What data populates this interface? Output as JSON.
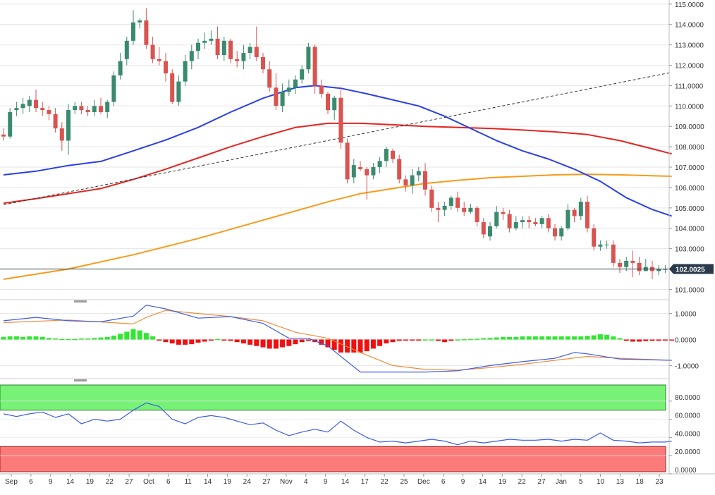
{
  "chart_data": {
    "type": "candlestick",
    "x_tick_labels": [
      "Sep",
      "6",
      "9",
      "14",
      "19",
      "22",
      "27",
      "Oct",
      "6",
      "11",
      "14",
      "19",
      "24",
      "27",
      "Nov",
      "4",
      "9",
      "14",
      "17",
      "22",
      "25",
      "Dec",
      "6",
      "9",
      "14",
      "19",
      "22",
      "27",
      "Jan",
      "5",
      "10",
      "13",
      "18",
      "23"
    ],
    "price_axis": {
      "ylim": [
        100.6,
        115.2
      ],
      "tick_values": [
        101,
        102,
        103,
        104,
        105,
        106,
        107,
        108,
        109,
        110,
        111,
        112,
        113,
        114,
        115
      ],
      "tick_labels": [
        "101.0000",
        "102.0000",
        "103.0000",
        "104.0000",
        "105.0000",
        "106.0000",
        "107.0000",
        "108.0000",
        "109.0000",
        "110.0000",
        "111.0000",
        "112.0000",
        "113.0000",
        "114.0000",
        "115.0000"
      ],
      "last_price_label": "102.0025",
      "last_price": 102.0025
    },
    "candles_ohlc": [
      [
        108.6,
        108.9,
        108.3,
        108.5
      ],
      [
        108.5,
        109.9,
        108.4,
        109.7
      ],
      [
        109.8,
        110.2,
        109.5,
        109.9
      ],
      [
        109.9,
        110.4,
        109.6,
        110.1
      ],
      [
        110.0,
        110.5,
        109.7,
        110.3
      ],
      [
        110.3,
        110.8,
        109.7,
        109.9
      ],
      [
        109.9,
        110.2,
        109.5,
        109.8
      ],
      [
        109.8,
        110.0,
        109.3,
        109.6
      ],
      [
        109.6,
        109.9,
        108.7,
        108.9
      ],
      [
        108.9,
        109.2,
        107.8,
        108.3
      ],
      [
        108.3,
        110.1,
        107.6,
        109.8
      ],
      [
        109.8,
        110.2,
        109.6,
        110.0
      ],
      [
        110.0,
        110.2,
        109.6,
        109.8
      ],
      [
        109.8,
        110.0,
        109.5,
        109.7
      ],
      [
        109.7,
        110.3,
        109.5,
        110.0
      ],
      [
        110.0,
        110.4,
        109.6,
        109.7
      ],
      [
        109.7,
        110.3,
        109.4,
        110.2
      ],
      [
        110.2,
        111.7,
        110.0,
        111.5
      ],
      [
        111.5,
        112.6,
        111.3,
        112.2
      ],
      [
        112.3,
        113.4,
        112.0,
        113.2
      ],
      [
        113.2,
        114.7,
        113.0,
        114.1
      ],
      [
        114.1,
        114.3,
        113.8,
        114.2
      ],
      [
        114.2,
        114.8,
        112.8,
        113.0
      ],
      [
        113.0,
        113.4,
        112.1,
        112.3
      ],
      [
        112.3,
        112.9,
        112.0,
        112.2
      ],
      [
        112.2,
        112.6,
        111.2,
        111.6
      ],
      [
        111.6,
        111.8,
        110.1,
        110.2
      ],
      [
        110.2,
        111.5,
        110.0,
        111.2
      ],
      [
        111.2,
        112.5,
        111.0,
        112.2
      ],
      [
        112.2,
        113.0,
        111.8,
        112.7
      ],
      [
        112.7,
        113.3,
        112.3,
        113.1
      ],
      [
        113.1,
        113.6,
        112.8,
        113.2
      ],
      [
        113.2,
        113.7,
        113.0,
        113.3
      ],
      [
        113.3,
        113.9,
        112.3,
        112.5
      ],
      [
        112.5,
        113.4,
        112.2,
        113.2
      ],
      [
        113.2,
        113.3,
        112.1,
        112.3
      ],
      [
        112.3,
        112.7,
        111.9,
        112.2
      ],
      [
        112.2,
        113.0,
        111.8,
        112.6
      ],
      [
        112.6,
        113.1,
        112.3,
        112.9
      ],
      [
        112.9,
        113.9,
        112.2,
        112.4
      ],
      [
        112.4,
        112.6,
        111.6,
        111.8
      ],
      [
        111.8,
        112.2,
        110.7,
        110.9
      ],
      [
        110.9,
        111.6,
        109.8,
        110.0
      ],
      [
        110.0,
        111.1,
        109.7,
        110.7
      ],
      [
        110.7,
        111.3,
        110.5,
        110.9
      ],
      [
        110.9,
        111.5,
        110.6,
        111.3
      ],
      [
        111.3,
        112.0,
        111.1,
        111.8
      ],
      [
        111.8,
        113.1,
        111.6,
        112.9
      ],
      [
        112.9,
        113.0,
        110.6,
        111.0
      ],
      [
        111.0,
        111.3,
        110.4,
        110.6
      ],
      [
        110.6,
        110.7,
        109.6,
        109.8
      ],
      [
        109.8,
        110.5,
        109.3,
        110.4
      ],
      [
        110.4,
        110.9,
        107.9,
        108.2
      ],
      [
        108.2,
        108.4,
        106.2,
        106.4
      ],
      [
        106.5,
        107.4,
        106.2,
        107.1
      ],
      [
        107.0,
        107.3,
        106.8,
        106.9
      ],
      [
        106.9,
        107.0,
        105.4,
        106.6
      ],
      [
        106.6,
        107.2,
        106.4,
        107.0
      ],
      [
        107.0,
        107.5,
        106.7,
        107.3
      ],
      [
        107.3,
        108.0,
        107.0,
        107.9
      ],
      [
        107.8,
        107.9,
        107.2,
        107.4
      ],
      [
        107.4,
        107.6,
        106.2,
        106.4
      ],
      [
        106.4,
        106.6,
        105.8,
        106.1
      ],
      [
        106.1,
        106.9,
        105.7,
        106.6
      ],
      [
        106.6,
        107.0,
        106.3,
        106.8
      ],
      [
        106.8,
        107.2,
        105.6,
        105.9
      ],
      [
        105.9,
        106.1,
        104.8,
        105.0
      ],
      [
        105.0,
        105.3,
        104.3,
        104.9
      ],
      [
        104.9,
        105.3,
        104.6,
        105.1
      ],
      [
        105.1,
        105.6,
        104.9,
        105.5
      ],
      [
        105.5,
        105.8,
        104.8,
        105.0
      ],
      [
        105.0,
        105.3,
        104.6,
        104.8
      ],
      [
        104.8,
        105.2,
        104.7,
        105.0
      ],
      [
        105.0,
        105.1,
        104.1,
        104.3
      ],
      [
        104.3,
        104.5,
        103.5,
        103.7
      ],
      [
        103.6,
        104.3,
        103.4,
        104.1
      ],
      [
        104.1,
        105.1,
        104.0,
        104.8
      ],
      [
        104.8,
        105.0,
        104.4,
        104.7
      ],
      [
        104.7,
        104.9,
        103.8,
        104.0
      ],
      [
        104.0,
        104.6,
        103.9,
        104.3
      ],
      [
        104.3,
        104.6,
        104.0,
        104.4
      ],
      [
        104.4,
        104.6,
        104.0,
        104.3
      ],
      [
        104.3,
        104.5,
        104.1,
        104.2
      ],
      [
        104.2,
        104.6,
        104.0,
        104.5
      ],
      [
        104.5,
        104.7,
        103.8,
        104.0
      ],
      [
        104.0,
        104.2,
        103.4,
        103.6
      ],
      [
        103.6,
        104.1,
        103.4,
        104.0
      ],
      [
        104.0,
        105.2,
        103.9,
        104.9
      ],
      [
        104.9,
        105.0,
        104.3,
        104.6
      ],
      [
        104.6,
        105.5,
        104.4,
        105.3
      ],
      [
        105.3,
        105.6,
        103.8,
        104.0
      ],
      [
        104.0,
        104.2,
        102.9,
        103.1
      ],
      [
        103.1,
        103.4,
        102.9,
        103.2
      ],
      [
        103.2,
        103.4,
        103.0,
        103.2
      ],
      [
        103.2,
        103.4,
        102.1,
        102.3
      ],
      [
        102.3,
        102.5,
        101.8,
        102.1
      ],
      [
        102.1,
        102.6,
        101.9,
        102.4
      ],
      [
        102.4,
        102.9,
        101.6,
        102.3
      ],
      [
        102.3,
        102.6,
        101.7,
        101.9
      ],
      [
        101.9,
        102.5,
        101.9,
        102.1
      ],
      [
        102.1,
        102.4,
        101.5,
        101.9
      ],
      [
        101.9,
        102.2,
        101.7,
        102.0
      ],
      [
        102.0,
        102.2,
        101.8,
        102.0
      ]
    ],
    "sma_blue": [
      [
        0,
        106.62
      ],
      [
        5,
        106.8
      ],
      [
        10,
        107.08
      ],
      [
        15,
        107.28
      ],
      [
        20,
        107.8
      ],
      [
        25,
        108.33
      ],
      [
        30,
        108.95
      ],
      [
        35,
        109.7
      ],
      [
        40,
        110.38
      ],
      [
        45,
        110.9
      ],
      [
        48,
        111.0
      ],
      [
        52,
        110.87
      ],
      [
        56,
        110.6
      ],
      [
        60,
        110.3
      ],
      [
        64,
        110.0
      ],
      [
        68,
        109.5
      ],
      [
        72,
        108.9
      ],
      [
        76,
        108.3
      ],
      [
        80,
        107.8
      ],
      [
        84,
        107.4
      ],
      [
        88,
        106.9
      ],
      [
        92,
        106.3
      ],
      [
        96,
        105.5
      ],
      [
        100,
        104.92
      ],
      [
        103,
        104.6
      ]
    ],
    "sma_red": [
      [
        0,
        105.23
      ],
      [
        5,
        105.45
      ],
      [
        10,
        105.7
      ],
      [
        15,
        105.95
      ],
      [
        20,
        106.4
      ],
      [
        25,
        106.9
      ],
      [
        30,
        107.45
      ],
      [
        35,
        108.0
      ],
      [
        40,
        108.5
      ],
      [
        45,
        108.95
      ],
      [
        50,
        109.15
      ],
      [
        55,
        109.15
      ],
      [
        60,
        109.08
      ],
      [
        65,
        109.0
      ],
      [
        70,
        108.95
      ],
      [
        75,
        108.9
      ],
      [
        80,
        108.82
      ],
      [
        85,
        108.73
      ],
      [
        90,
        108.6
      ],
      [
        95,
        108.3
      ],
      [
        100,
        107.9
      ],
      [
        103,
        107.65
      ]
    ],
    "sma_orange": [
      [
        0,
        101.5
      ],
      [
        10,
        102.0
      ],
      [
        20,
        102.7
      ],
      [
        30,
        103.5
      ],
      [
        40,
        104.4
      ],
      [
        50,
        105.3
      ],
      [
        55,
        105.7
      ],
      [
        60,
        105.95
      ],
      [
        65,
        106.2
      ],
      [
        70,
        106.35
      ],
      [
        75,
        106.48
      ],
      [
        80,
        106.55
      ],
      [
        85,
        106.62
      ],
      [
        90,
        106.65
      ],
      [
        95,
        106.62
      ],
      [
        100,
        106.58
      ],
      [
        103,
        106.55
      ]
    ],
    "trendline": [
      [
        0,
        105.15
      ],
      [
        103,
        111.65
      ]
    ],
    "macd_panel": {
      "ylim": [
        -1.45,
        1.45
      ],
      "tick_values": [
        1,
        0,
        -1
      ],
      "tick_labels": [
        "1.0000",
        "0.0000",
        "-1.0000"
      ],
      "macd_blue": [
        [
          0,
          0.72
        ],
        [
          5,
          0.85
        ],
        [
          10,
          0.72
        ],
        [
          15,
          0.68
        ],
        [
          20,
          0.9
        ],
        [
          22,
          1.32
        ],
        [
          25,
          1.18
        ],
        [
          30,
          0.82
        ],
        [
          35,
          0.88
        ],
        [
          40,
          0.62
        ],
        [
          44,
          0.05
        ],
        [
          47,
          0.05
        ],
        [
          50,
          -0.25
        ],
        [
          55,
          -1.25
        ],
        [
          60,
          -1.25
        ],
        [
          65,
          -1.25
        ],
        [
          70,
          -1.2
        ],
        [
          75,
          -1.0
        ],
        [
          80,
          -0.85
        ],
        [
          85,
          -0.72
        ],
        [
          88,
          -0.5
        ],
        [
          90,
          -0.55
        ],
        [
          95,
          -0.75
        ],
        [
          103,
          -0.8
        ]
      ],
      "signal_orange": [
        [
          0,
          0.65
        ],
        [
          10,
          0.75
        ],
        [
          20,
          0.6
        ],
        [
          22,
          0.85
        ],
        [
          25,
          1.12
        ],
        [
          30,
          1.0
        ],
        [
          35,
          0.88
        ],
        [
          40,
          0.72
        ],
        [
          45,
          0.28
        ],
        [
          50,
          0.05
        ],
        [
          55,
          -0.5
        ],
        [
          60,
          -1.0
        ],
        [
          65,
          -1.15
        ],
        [
          70,
          -1.18
        ],
        [
          75,
          -1.08
        ],
        [
          80,
          -0.95
        ],
        [
          85,
          -0.8
        ],
        [
          90,
          -0.65
        ],
        [
          95,
          -0.72
        ],
        [
          103,
          -0.8
        ]
      ],
      "histogram": [
        0.1,
        0.12,
        0.12,
        0.1,
        0.12,
        0.12,
        0.1,
        0.06,
        0.04,
        0.02,
        0.02,
        0.02,
        0.04,
        0.04,
        0.06,
        0.08,
        0.1,
        0.15,
        0.22,
        0.3,
        0.4,
        0.35,
        0.25,
        0.12,
        -0.02,
        -0.1,
        -0.15,
        -0.2,
        -0.2,
        -0.18,
        -0.12,
        -0.08,
        -0.02,
        0.02,
        -0.02,
        -0.05,
        -0.1,
        -0.15,
        -0.2,
        -0.25,
        -0.3,
        -0.35,
        -0.35,
        -0.3,
        -0.25,
        -0.18,
        -0.1,
        -0.05,
        -0.1,
        -0.2,
        -0.3,
        -0.4,
        -0.5,
        -0.5,
        -0.5,
        -0.5,
        -0.45,
        -0.35,
        -0.25,
        -0.15,
        -0.1,
        -0.05,
        -0.03,
        -0.02,
        -0.01,
        0,
        0,
        -0.05,
        -0.1,
        -0.05,
        0,
        0.01,
        0.02,
        0.03,
        0.05,
        0.06,
        0.08,
        0.1,
        0.1,
        0.1,
        0.12,
        0.12,
        0.12,
        0.12,
        0.12,
        0.12,
        0.12,
        0.12,
        0.12,
        0.12,
        0.14,
        0.16,
        0.2,
        0.18,
        0.12,
        0.05,
        -0.05,
        -0.08,
        -0.08,
        -0.06,
        -0.05,
        -0.05,
        -0.03,
        -0.02
      ]
    },
    "rsi_panel": {
      "ylim": [
        0,
        100
      ],
      "tick_values": [
        80,
        60,
        40,
        20,
        0
      ],
      "tick_labels": [
        "80.0000",
        "60.0000",
        "40.0000",
        "20.0000",
        "0.0000"
      ],
      "overbought_band": [
        70,
        100
      ],
      "oversold_band": [
        0,
        30
      ],
      "rsi": [
        [
          0,
          66
        ],
        [
          2,
          63
        ],
        [
          4,
          66
        ],
        [
          6,
          68
        ],
        [
          8,
          62
        ],
        [
          10,
          66
        ],
        [
          12,
          55
        ],
        [
          14,
          60
        ],
        [
          16,
          58
        ],
        [
          18,
          60
        ],
        [
          20,
          70
        ],
        [
          22,
          78
        ],
        [
          24,
          74
        ],
        [
          26,
          60
        ],
        [
          28,
          55
        ],
        [
          30,
          62
        ],
        [
          32,
          64
        ],
        [
          34,
          62
        ],
        [
          36,
          58
        ],
        [
          38,
          54
        ],
        [
          40,
          56
        ],
        [
          42,
          48
        ],
        [
          44,
          42
        ],
        [
          46,
          46
        ],
        [
          48,
          49
        ],
        [
          50,
          46
        ],
        [
          52,
          58
        ],
        [
          54,
          48
        ],
        [
          56,
          40
        ],
        [
          58,
          35
        ],
        [
          60,
          36
        ],
        [
          62,
          34
        ],
        [
          64,
          36
        ],
        [
          66,
          38
        ],
        [
          68,
          36
        ],
        [
          70,
          32
        ],
        [
          72,
          36
        ],
        [
          74,
          34
        ],
        [
          76,
          36
        ],
        [
          78,
          38
        ],
        [
          80,
          37
        ],
        [
          82,
          37
        ],
        [
          84,
          38
        ],
        [
          86,
          36
        ],
        [
          88,
          38
        ],
        [
          90,
          37
        ],
        [
          92,
          45
        ],
        [
          94,
          37
        ],
        [
          96,
          36
        ],
        [
          98,
          34
        ],
        [
          100,
          35
        ],
        [
          102,
          35
        ],
        [
          103,
          36
        ]
      ]
    },
    "colors": {
      "bull_candle": "#3a8a6e",
      "bear_candle": "#d9534f",
      "sma_blue": "#2a3fe6",
      "sma_red": "#e52420",
      "sma_orange": "#f79b1a",
      "trendline": "#333333",
      "price_line": "#2a3a4a",
      "price_tag_bg": "#2a3a4a",
      "macd_blue": "#3d5ce6",
      "signal_orange": "#f08b3a",
      "hist_pos": "#30e830",
      "hist_neg": "#f01010",
      "rsi_line": "#3d5ce6",
      "overbought_fill": "#77f277",
      "oversold_fill": "#fb7b7b",
      "grid": "#e6e6e6"
    }
  }
}
